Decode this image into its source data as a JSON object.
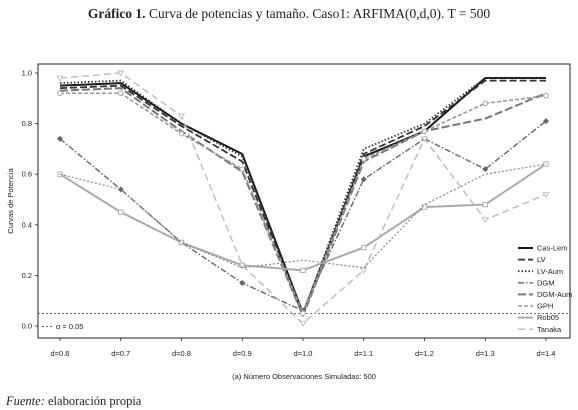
{
  "header": {
    "title_bold": "Gráfico 1.",
    "title_rest": "Curva de potencias y tamaño. Caso1: ARFIMA(0,d,0). T = 500"
  },
  "footer": {
    "source_label": "Fuente:",
    "source_text": "elaboración propia"
  },
  "chart_data": {
    "type": "line",
    "title": "Gráfico 1. Curva de potencias y tamaño. Caso1: ARFIMA(0,d,0). T = 500",
    "xlabel": "(a) Número Observaciones Simuladas: 500",
    "ylabel": "Curvas de Potencia",
    "categories": [
      "d=0.6",
      "d=0.7",
      "d=0.8",
      "d=0.9",
      "d=1.0",
      "d=1.1",
      "d=1.2",
      "d=1.3",
      "d=1.4"
    ],
    "ylim": [
      0,
      1.0
    ],
    "yticks": [
      "0.0",
      "0.2",
      "0.4",
      "0.6",
      "0.8",
      "1.0"
    ],
    "grid": false,
    "legend_position": "bottom-right",
    "reference_line": {
      "label": "α = 0.05",
      "value": 0.05
    },
    "series": [
      {
        "name": "Cas-Lem",
        "color": "#1a1a1a",
        "dash": "",
        "width": 2.0,
        "marker": "none",
        "values": [
          0.95,
          0.96,
          0.8,
          0.68,
          0.05,
          0.67,
          0.77,
          0.98,
          0.98
        ]
      },
      {
        "name": "LV",
        "color": "#333333",
        "dash": "7,3",
        "width": 1.8,
        "marker": "none",
        "values": [
          0.94,
          0.95,
          0.79,
          0.65,
          0.04,
          0.68,
          0.79,
          0.97,
          0.97
        ]
      },
      {
        "name": "LV-Aum",
        "color": "#333333",
        "dash": "1.5,2",
        "width": 1.8,
        "marker": "none",
        "values": [
          0.96,
          0.97,
          0.8,
          0.67,
          0.05,
          0.7,
          0.8,
          0.98,
          0.98
        ]
      },
      {
        "name": "DGM",
        "color": "#666666",
        "dash": "6,2,1.5,2",
        "width": 1.4,
        "marker": "diamond",
        "values": [
          0.74,
          0.54,
          0.33,
          0.17,
          0.06,
          0.58,
          0.74,
          0.62,
          0.81
        ]
      },
      {
        "name": "DGM-Aum",
        "color": "#777777",
        "dash": "8,3",
        "width": 2.0,
        "marker": "none",
        "values": [
          0.93,
          0.94,
          0.77,
          0.61,
          0.04,
          0.65,
          0.77,
          0.82,
          0.92
        ]
      },
      {
        "name": "GPH",
        "color": "#999999",
        "dash": "4,2",
        "width": 1.6,
        "marker": "circle",
        "values": [
          0.92,
          0.92,
          0.76,
          0.62,
          0.05,
          0.66,
          0.77,
          0.88,
          0.91
        ]
      },
      {
        "name": "Rob05",
        "color": "#aaaaaa",
        "dash": "",
        "width": 2.0,
        "marker": "square",
        "values": [
          0.6,
          0.45,
          0.33,
          0.24,
          0.22,
          0.31,
          0.47,
          0.48,
          0.64
        ]
      },
      {
        "name": "Tanaka",
        "color": "#bbbbbb",
        "dash": "7,4",
        "width": 1.4,
        "marker": "triangle",
        "values": [
          0.98,
          1.0,
          0.83,
          0.24,
          0.01,
          0.22,
          0.74,
          0.42,
          0.52
        ]
      },
      {
        "name": "",
        "color": "#888888",
        "dash": "2,2",
        "width": 1.2,
        "marker": "none",
        "values": [
          0.6,
          0.54,
          0.33,
          0.23,
          0.26,
          0.23,
          0.48,
          0.6,
          0.64
        ]
      }
    ]
  }
}
